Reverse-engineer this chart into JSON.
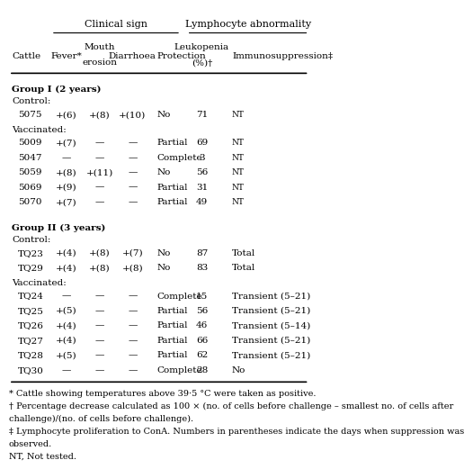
{
  "title_clinical": "Clinical sign",
  "title_lymphocyte": "Lymphocyte abnormality",
  "col_headers": [
    "Cattle",
    "Fever*",
    "Mouth\nerosion",
    "Diarrhoea",
    "Protection",
    "Leukopenia\n(%)†",
    "Immunosuppression‡"
  ],
  "groups": [
    {
      "group_label": "Group I (2 years)",
      "subgroups": [
        {
          "sublabel": "Control:",
          "rows": [
            [
              "5075",
              "+(6)",
              "+(8)",
              "+(10)",
              "No",
              "71",
              "NT"
            ]
          ]
        },
        {
          "sublabel": "Vaccinated:",
          "rows": [
            [
              "5009",
              "+(7)",
              "—",
              "—",
              "Partial",
              "69",
              "NT"
            ],
            [
              "5047",
              "—",
              "—",
              "—",
              "Complete",
              "3",
              "NT"
            ],
            [
              "5059",
              "+(8)",
              "+(11)",
              "—",
              "No",
              "56",
              "NT"
            ],
            [
              "5069",
              "+(9)",
              "—",
              "—",
              "Partial",
              "31",
              "NT"
            ],
            [
              "5070",
              "+(7)",
              "—",
              "—",
              "Partial",
              "49",
              "NT"
            ]
          ]
        }
      ]
    },
    {
      "group_label": "Group II (3 years)",
      "subgroups": [
        {
          "sublabel": "Control:",
          "rows": [
            [
              "TQ23",
              "+(4)",
              "+(8)",
              "+(7)",
              "No",
              "87",
              "Total"
            ],
            [
              "TQ29",
              "+(4)",
              "+(8)",
              "+(8)",
              "No",
              "83",
              "Total"
            ]
          ]
        },
        {
          "sublabel": "Vaccinated:",
          "rows": [
            [
              "TQ24",
              "—",
              "—",
              "—",
              "Complete",
              "15",
              "Transient (5–21)"
            ],
            [
              "TQ25",
              "+(5)",
              "—",
              "—",
              "Partial",
              "56",
              "Transient (5–21)"
            ],
            [
              "TQ26",
              "+(4)",
              "—",
              "—",
              "Partial",
              "46",
              "Transient (5–14)"
            ],
            [
              "TQ27",
              "+(4)",
              "—",
              "—",
              "Partial",
              "66",
              "Transient (5–21)"
            ],
            [
              "TQ28",
              "+(5)",
              "—",
              "—",
              "Partial",
              "62",
              "Transient (5–21)"
            ],
            [
              "TQ30",
              "—",
              "—",
              "—",
              "Complete",
              "28",
              "No"
            ]
          ]
        }
      ]
    }
  ],
  "footnotes": [
    "* Cattle showing temperatures above 39·5 °C were taken as positive.",
    "† Percentage decrease calculated as 100 × (no. of cells before challenge – smallest no. of cells after",
    "challenge)/(no. of cells before challenge).",
    "‡ Lymphocyte proliferation to ConA. Numbers in parentheses indicate the days when suppression was",
    "observed.",
    "NT, Not tested."
  ],
  "bg_color": "white",
  "text_color": "black",
  "font_size": 7.5,
  "header_font_size": 8,
  "footnote_font_size": 7
}
